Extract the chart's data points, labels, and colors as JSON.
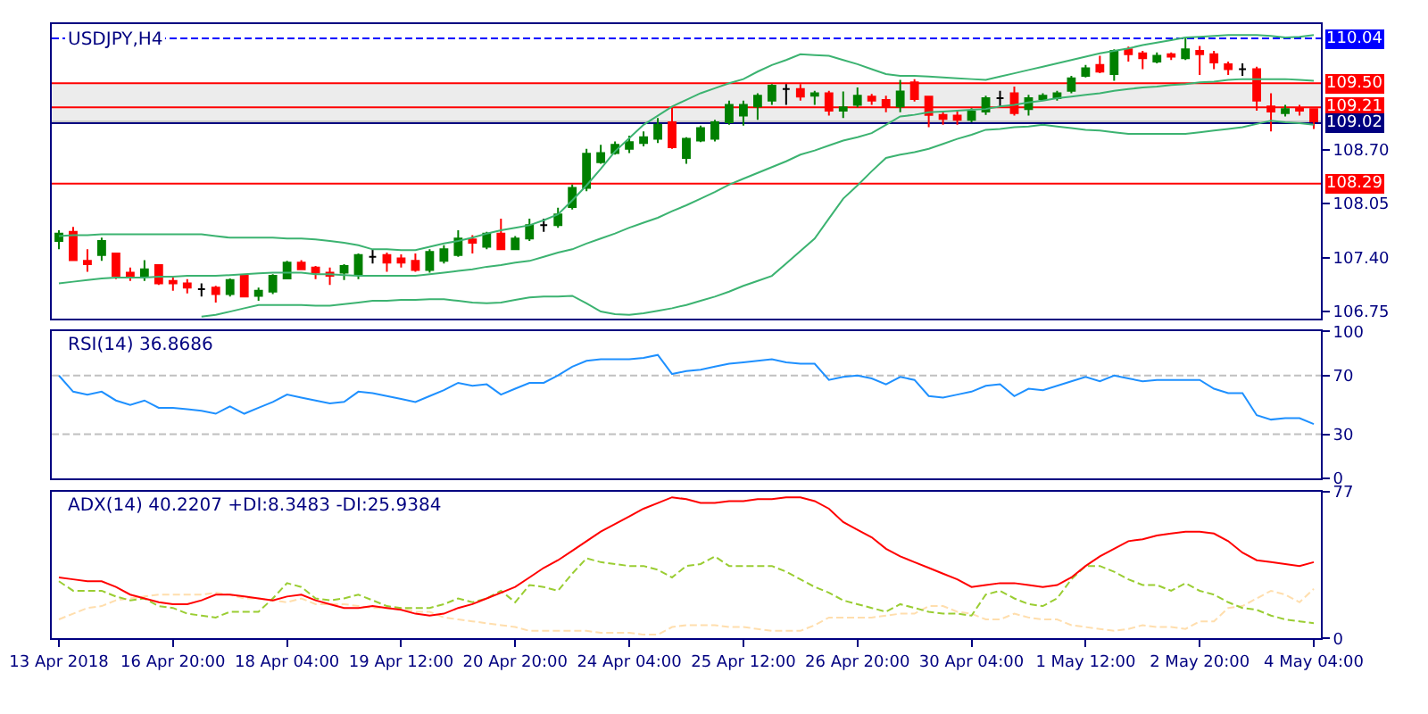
{
  "chart_data": [
    {
      "type": "candlestick",
      "title": "USDJPY,H4",
      "tick_labels": "y",
      "ohlc": [
        [
          107.6,
          107.73,
          107.5,
          107.69
        ],
        [
          107.71,
          107.77,
          107.36,
          107.37
        ],
        [
          107.36,
          107.5,
          107.23,
          107.32
        ],
        [
          107.43,
          107.64,
          107.36,
          107.6
        ],
        [
          107.45,
          107.45,
          107.14,
          107.18
        ],
        [
          107.22,
          107.28,
          107.12,
          107.18
        ],
        [
          107.18,
          107.37,
          107.12,
          107.26
        ],
        [
          107.31,
          107.32,
          107.07,
          107.09
        ],
        [
          107.12,
          107.16,
          107.0,
          107.09
        ],
        [
          107.09,
          107.14,
          106.97,
          107.04
        ],
        [
          107.02,
          107.09,
          106.93,
          107.02
        ],
        [
          107.04,
          107.06,
          106.86,
          106.96
        ],
        [
          106.96,
          107.15,
          106.93,
          107.13
        ],
        [
          107.18,
          107.2,
          106.93,
          106.93
        ],
        [
          106.94,
          107.04,
          106.88,
          107.0
        ],
        [
          106.99,
          107.2,
          106.96,
          107.18
        ],
        [
          107.15,
          107.36,
          107.14,
          107.34
        ],
        [
          107.34,
          107.37,
          107.26,
          107.26
        ],
        [
          107.28,
          107.3,
          107.14,
          107.22
        ],
        [
          107.22,
          107.28,
          107.07,
          107.18
        ],
        [
          107.22,
          107.32,
          107.13,
          107.3
        ],
        [
          107.2,
          107.45,
          107.14,
          107.43
        ],
        [
          107.41,
          107.5,
          107.33,
          107.41
        ],
        [
          107.43,
          107.46,
          107.23,
          107.34
        ],
        [
          107.39,
          107.44,
          107.28,
          107.34
        ],
        [
          107.36,
          107.45,
          107.23,
          107.25
        ],
        [
          107.25,
          107.5,
          107.22,
          107.47
        ],
        [
          107.36,
          107.55,
          107.33,
          107.5
        ],
        [
          107.43,
          107.73,
          107.41,
          107.63
        ],
        [
          107.62,
          107.67,
          107.45,
          107.58
        ],
        [
          107.53,
          107.71,
          107.5,
          107.69
        ],
        [
          107.69,
          107.87,
          107.5,
          107.5
        ],
        [
          107.5,
          107.66,
          107.5,
          107.63
        ],
        [
          107.63,
          107.87,
          107.6,
          107.79
        ],
        [
          107.79,
          107.87,
          107.71,
          107.79
        ],
        [
          107.79,
          108.0,
          107.76,
          107.92
        ],
        [
          108.01,
          108.28,
          107.98,
          108.24
        ],
        [
          108.24,
          108.71,
          108.2,
          108.65
        ],
        [
          108.55,
          108.76,
          108.53,
          108.66
        ],
        [
          108.66,
          108.8,
          108.64,
          108.76
        ],
        [
          108.71,
          108.87,
          108.66,
          108.79
        ],
        [
          108.78,
          108.92,
          108.74,
          108.85
        ],
        [
          108.83,
          109.08,
          108.78,
          109.0
        ],
        [
          109.03,
          109.22,
          108.71,
          108.73
        ],
        [
          108.6,
          108.85,
          108.53,
          108.83
        ],
        [
          108.81,
          108.99,
          108.79,
          108.96
        ],
        [
          108.83,
          109.06,
          108.8,
          109.03
        ],
        [
          109.03,
          109.29,
          109.0,
          109.24
        ],
        [
          109.11,
          109.29,
          108.99,
          109.24
        ],
        [
          109.22,
          109.38,
          109.06,
          109.35
        ],
        [
          109.29,
          109.49,
          109.24,
          109.47
        ],
        [
          109.43,
          109.49,
          109.24,
          109.43
        ],
        [
          109.43,
          109.49,
          109.29,
          109.34
        ],
        [
          109.35,
          109.41,
          109.24,
          109.38
        ],
        [
          109.38,
          109.41,
          109.11,
          109.17
        ],
        [
          109.17,
          109.4,
          109.08,
          109.21
        ],
        [
          109.24,
          109.45,
          109.21,
          109.35
        ],
        [
          109.34,
          109.37,
          109.24,
          109.29
        ],
        [
          109.3,
          109.35,
          109.15,
          109.22
        ],
        [
          109.22,
          109.54,
          109.15,
          109.4
        ],
        [
          109.51,
          109.55,
          109.28,
          109.31
        ],
        [
          109.34,
          109.35,
          108.97,
          109.12
        ],
        [
          109.12,
          109.16,
          109.0,
          109.07
        ],
        [
          109.11,
          109.18,
          109.0,
          109.06
        ],
        [
          109.06,
          109.2,
          109.03,
          109.16
        ],
        [
          109.16,
          109.35,
          109.12,
          109.32
        ],
        [
          109.32,
          109.41,
          109.22,
          109.32
        ],
        [
          109.38,
          109.46,
          109.11,
          109.14
        ],
        [
          109.19,
          109.36,
          109.11,
          109.32
        ],
        [
          109.31,
          109.38,
          109.29,
          109.35
        ],
        [
          109.32,
          109.41,
          109.29,
          109.38
        ],
        [
          109.41,
          109.59,
          109.38,
          109.56
        ],
        [
          109.59,
          109.72,
          109.57,
          109.68
        ],
        [
          109.72,
          109.83,
          109.62,
          109.64
        ],
        [
          109.61,
          109.91,
          109.53,
          109.89
        ],
        [
          109.91,
          109.94,
          109.76,
          109.85
        ],
        [
          109.86,
          109.89,
          109.67,
          109.8
        ],
        [
          109.76,
          109.87,
          109.74,
          109.83
        ],
        [
          109.85,
          109.87,
          109.78,
          109.82
        ],
        [
          109.8,
          110.05,
          109.78,
          109.91
        ],
        [
          109.89,
          109.95,
          109.6,
          109.85
        ],
        [
          109.85,
          109.89,
          109.67,
          109.75
        ],
        [
          109.73,
          109.76,
          109.6,
          109.67
        ],
        [
          109.67,
          109.74,
          109.59,
          109.67
        ],
        [
          109.67,
          109.7,
          109.17,
          109.29
        ],
        [
          109.22,
          109.38,
          108.92,
          109.16
        ],
        [
          109.14,
          109.24,
          109.1,
          109.19
        ],
        [
          109.2,
          109.24,
          109.11,
          109.17
        ],
        [
          109.19,
          109.19,
          108.95,
          109.04
        ]
      ],
      "colors": [
        "#008000",
        "#ff0000",
        "#ff0000",
        "#008000",
        "#ff0000",
        "#ff0000",
        "#008000",
        "#ff0000",
        "#ff0000",
        "#ff0000",
        "#000000",
        "#ff0000",
        "#008000",
        "#ff0000",
        "#008000",
        "#008000",
        "#008000",
        "#ff0000",
        "#ff0000",
        "#ff0000",
        "#008000",
        "#008000",
        "#000000",
        "#ff0000",
        "#ff0000",
        "#ff0000",
        "#008000",
        "#008000",
        "#008000",
        "#ff0000",
        "#008000",
        "#ff0000",
        "#008000",
        "#008000",
        "#000000",
        "#008000",
        "#008000",
        "#008000",
        "#008000",
        "#008000",
        "#008000",
        "#008000",
        "#008000",
        "#ff0000",
        "#008000",
        "#008000",
        "#008000",
        "#008000",
        "#008000",
        "#008000",
        "#008000",
        "#000000",
        "#ff0000",
        "#008000",
        "#ff0000",
        "#008000",
        "#008000",
        "#ff0000",
        "#ff0000",
        "#008000",
        "#ff0000",
        "#ff0000",
        "#ff0000",
        "#ff0000",
        "#008000",
        "#008000",
        "#000000",
        "#ff0000",
        "#008000",
        "#008000",
        "#008000",
        "#008000",
        "#008000",
        "#ff0000",
        "#008000",
        "#ff0000",
        "#ff0000",
        "#008000",
        "#ff0000",
        "#008000",
        "#ff0000",
        "#ff0000",
        "#ff0000",
        "#000000",
        "#ff0000",
        "#ff0000",
        "#008000",
        "#ff0000",
        "#ff0000"
      ],
      "series": [
        {
          "type": "line",
          "color": "#3cb371",
          "values": [
            107.66,
            107.67,
            107.67,
            107.68,
            107.68,
            107.68,
            107.68,
            107.68,
            107.68,
            107.68,
            107.68,
            107.66,
            107.64,
            107.64,
            107.64,
            107.64,
            107.63,
            107.63,
            107.62,
            107.6,
            107.58,
            107.55,
            107.5,
            107.5,
            107.49,
            107.49,
            107.53,
            107.57,
            107.6,
            107.64,
            107.69,
            107.73,
            107.76,
            107.79,
            107.85,
            107.92,
            108.09,
            108.27,
            108.47,
            108.68,
            108.84,
            109.0,
            109.11,
            109.22,
            109.3,
            109.38,
            109.44,
            109.5,
            109.55,
            109.64,
            109.72,
            109.78,
            109.85,
            109.84,
            109.83,
            109.78,
            109.73,
            109.67,
            109.61,
            109.59,
            109.59,
            109.58,
            109.57,
            109.56,
            109.55,
            109.54,
            109.58,
            109.62,
            109.66,
            109.7,
            109.74,
            109.78,
            109.82,
            109.86,
            109.89,
            109.92,
            109.96,
            109.99,
            110.02,
            110.05,
            110.06,
            110.07,
            110.08,
            110.08,
            110.08,
            110.07,
            110.05,
            110.06,
            110.08
          ]
        },
        {
          "type": "line",
          "color": "#3cb371",
          "values": [
            107.09,
            107.11,
            107.13,
            107.15,
            107.16,
            107.16,
            107.16,
            107.17,
            107.17,
            107.18,
            107.18,
            107.18,
            107.19,
            107.2,
            107.21,
            107.22,
            107.22,
            107.22,
            107.2,
            107.2,
            107.19,
            107.18,
            107.18,
            107.18,
            107.18,
            107.18,
            107.2,
            107.22,
            107.24,
            107.26,
            107.29,
            107.31,
            107.34,
            107.36,
            107.41,
            107.46,
            107.5,
            107.57,
            107.63,
            107.69,
            107.76,
            107.82,
            107.88,
            107.96,
            108.03,
            108.11,
            108.19,
            108.28,
            108.35,
            108.42,
            108.49,
            108.56,
            108.64,
            108.69,
            108.75,
            108.81,
            108.85,
            108.9,
            109.0,
            109.1,
            109.12,
            109.15,
            109.16,
            109.17,
            109.18,
            109.19,
            109.22,
            109.24,
            109.27,
            109.29,
            109.32,
            109.34,
            109.36,
            109.38,
            109.41,
            109.43,
            109.45,
            109.46,
            109.48,
            109.49,
            109.51,
            109.52,
            109.54,
            109.55,
            109.55,
            109.55,
            109.55,
            109.54,
            109.53
          ]
        },
        {
          "type": "line",
          "color": "#3cb371",
          "values": [
            null,
            null,
            null,
            null,
            null,
            null,
            null,
            null,
            null,
            null,
            106.69,
            106.71,
            106.75,
            106.79,
            106.83,
            106.83,
            106.83,
            106.83,
            106.82,
            106.82,
            106.84,
            106.86,
            106.88,
            106.88,
            106.89,
            106.89,
            106.9,
            106.9,
            106.88,
            106.86,
            106.85,
            106.86,
            106.89,
            106.92,
            106.93,
            106.93,
            106.94,
            106.85,
            106.75,
            106.72,
            106.71,
            106.73,
            106.76,
            106.79,
            106.83,
            106.88,
            106.93,
            106.99,
            107.06,
            107.12,
            107.18,
            107.33,
            107.48,
            107.63,
            107.87,
            108.11,
            108.27,
            108.44,
            108.6,
            108.64,
            108.67,
            108.71,
            108.77,
            108.83,
            108.88,
            108.94,
            108.95,
            108.97,
            108.98,
            109.0,
            108.98,
            108.96,
            108.94,
            108.93,
            108.91,
            108.89,
            108.89,
            108.89,
            108.89,
            108.89,
            108.91,
            108.93,
            108.95,
            108.97,
            109.01,
            109.05,
            109.03,
            109.02,
            109.0
          ]
        }
      ],
      "ylim": [
        106.67,
        110.21
      ],
      "yticks": [
        106.75,
        {
          "value": 107.4,
          "label": "107.40"
        },
        108.05,
        {
          "value": 108.7,
          "label": "108.70"
        }
      ],
      "bands": [
        {
          "axis": "y",
          "from": 109.02,
          "to": 109.5,
          "color": "#ececec"
        }
      ],
      "ref_lines": [
        {
          "axis": "y",
          "value": 110.04,
          "label": "110.04",
          "color": "#0000ff",
          "line_style": "dashed"
        },
        {
          "axis": "y",
          "value": 109.5,
          "label": "109.50",
          "color": "#ff0000"
        },
        {
          "axis": "y",
          "value": 109.21,
          "label": "109.21",
          "color": "#ff0000"
        },
        {
          "axis": "y",
          "value": 109.04,
          "color": "#c8c8c8"
        },
        {
          "axis": "y",
          "value": 109.02,
          "label": "109.02",
          "color": "#000080"
        },
        {
          "axis": "y",
          "value": 108.29,
          "label": "108.29",
          "color": "#ff0000"
        }
      ]
    },
    {
      "type": "line",
      "title": "RSI(14) 36.8686",
      "tick_labels": "y",
      "series": [
        {
          "color": "#1e90ff",
          "values": [
            70,
            59,
            57,
            59,
            53,
            50,
            53,
            48,
            48,
            47,
            46,
            44,
            49,
            44,
            48,
            52,
            57,
            55,
            53,
            51,
            52,
            59,
            58,
            56,
            54,
            52,
            56,
            60,
            65,
            63,
            64,
            57,
            61,
            65,
            65,
            70,
            76,
            80,
            81,
            81,
            81,
            82,
            84,
            71,
            73,
            74,
            76,
            78,
            79,
            80,
            81,
            79,
            78,
            78,
            67,
            69,
            70,
            68,
            64,
            69,
            67,
            56,
            55,
            57,
            59,
            63,
            64,
            56,
            61,
            60,
            63,
            66,
            69,
            66,
            70,
            68,
            66,
            67,
            67,
            67,
            67,
            61,
            58,
            58,
            43,
            40,
            41,
            41,
            37
          ]
        }
      ],
      "ylim": [
        0,
        100
      ],
      "yticks": [
        0,
        30,
        70,
        100
      ],
      "ref_lines": [
        {
          "axis": "y",
          "value": 70,
          "color": "#c0c0c0",
          "line_style": "dashed"
        },
        {
          "axis": "y",
          "value": 30,
          "color": "#c0c0c0",
          "line_style": "dashed"
        }
      ]
    },
    {
      "type": "line",
      "title": "ADX(14) 40.2207 +DI:8.3483 -DI:25.9384",
      "categories": [
        "13 Apr 2018",
        null,
        null,
        null,
        null,
        null,
        null,
        null,
        "16 Apr 20:00",
        null,
        null,
        null,
        null,
        null,
        null,
        null,
        "18 Apr 04:00",
        null,
        null,
        null,
        null,
        null,
        null,
        null,
        "19 Apr 12:00",
        null,
        null,
        null,
        null,
        null,
        null,
        null,
        "20 Apr 20:00",
        null,
        null,
        null,
        null,
        null,
        null,
        null,
        "24 Apr 04:00",
        null,
        null,
        null,
        null,
        null,
        null,
        null,
        "25 Apr 12:00",
        null,
        null,
        null,
        null,
        null,
        null,
        null,
        "26 Apr 20:00",
        null,
        null,
        null,
        null,
        null,
        null,
        null,
        "30 Apr 04:00",
        null,
        null,
        null,
        null,
        null,
        null,
        null,
        "1 May 12:00",
        null,
        null,
        null,
        null,
        null,
        null,
        null,
        "2 May 20:00",
        null,
        null,
        null,
        null,
        null,
        null,
        null,
        "4 May 04:00"
      ],
      "series": [
        {
          "color": "#ffdead",
          "line_style": "dashed",
          "values": [
            10,
            13,
            16,
            17,
            20,
            21,
            22,
            23,
            23,
            23,
            23,
            24,
            23,
            21,
            21,
            20,
            19,
            21,
            18,
            18,
            18,
            17,
            16,
            16,
            16,
            14,
            14,
            11,
            10,
            9,
            8,
            7,
            6,
            4,
            4,
            4,
            4,
            4,
            3,
            3,
            3,
            2,
            2,
            6,
            7,
            7,
            7,
            6,
            6,
            5,
            4,
            4,
            4,
            7,
            11,
            11,
            11,
            11,
            12,
            13,
            13,
            17,
            17,
            14,
            13,
            10,
            10,
            13,
            11,
            10,
            10,
            7,
            6,
            5,
            4,
            5,
            7,
            6,
            6,
            5,
            9,
            9,
            16,
            17,
            21,
            25,
            23,
            19,
            26
          ]
        },
        {
          "color": "#9acd32",
          "line_style": "dashed",
          "values": [
            30,
            25,
            25,
            25,
            22,
            20,
            21,
            17,
            16,
            13,
            12,
            11,
            14,
            14,
            14,
            21,
            29,
            27,
            21,
            20,
            21,
            23,
            20,
            17,
            16,
            16,
            16,
            18,
            21,
            19,
            21,
            25,
            19,
            28,
            27,
            25,
            34,
            42,
            40,
            39,
            38,
            38,
            36,
            32,
            38,
            39,
            43,
            38,
            38,
            38,
            38,
            35,
            31,
            27,
            24,
            20,
            18,
            16,
            14,
            18,
            16,
            14,
            13,
            13,
            12,
            23,
            25,
            21,
            18,
            17,
            21,
            31,
            38,
            38,
            35,
            31,
            28,
            28,
            25,
            29,
            25,
            23,
            19,
            16,
            15,
            12,
            10,
            9,
            8
          ]
        },
        {
          "color": "#ff0000",
          "values": [
            32,
            31,
            30,
            30,
            27,
            23,
            21,
            19,
            18,
            18,
            20,
            23,
            23,
            22,
            21,
            20,
            22,
            23,
            20,
            18,
            16,
            16,
            17,
            16,
            15,
            13,
            12,
            13,
            16,
            18,
            21,
            24,
            27,
            32,
            37,
            41,
            46,
            51,
            56,
            60,
            64,
            68,
            71,
            74,
            73,
            71,
            71,
            72,
            72,
            73,
            73,
            74,
            74,
            72,
            68,
            61,
            57,
            53,
            47,
            43,
            40,
            37,
            34,
            31,
            27,
            28,
            29,
            29,
            28,
            27,
            28,
            32,
            38,
            43,
            47,
            51,
            52,
            54,
            55,
            56,
            56,
            55,
            51,
            45,
            41,
            40,
            39,
            38,
            40
          ]
        }
      ],
      "ylim": [
        0,
        77
      ],
      "yticks": [
        0,
        77
      ]
    }
  ]
}
